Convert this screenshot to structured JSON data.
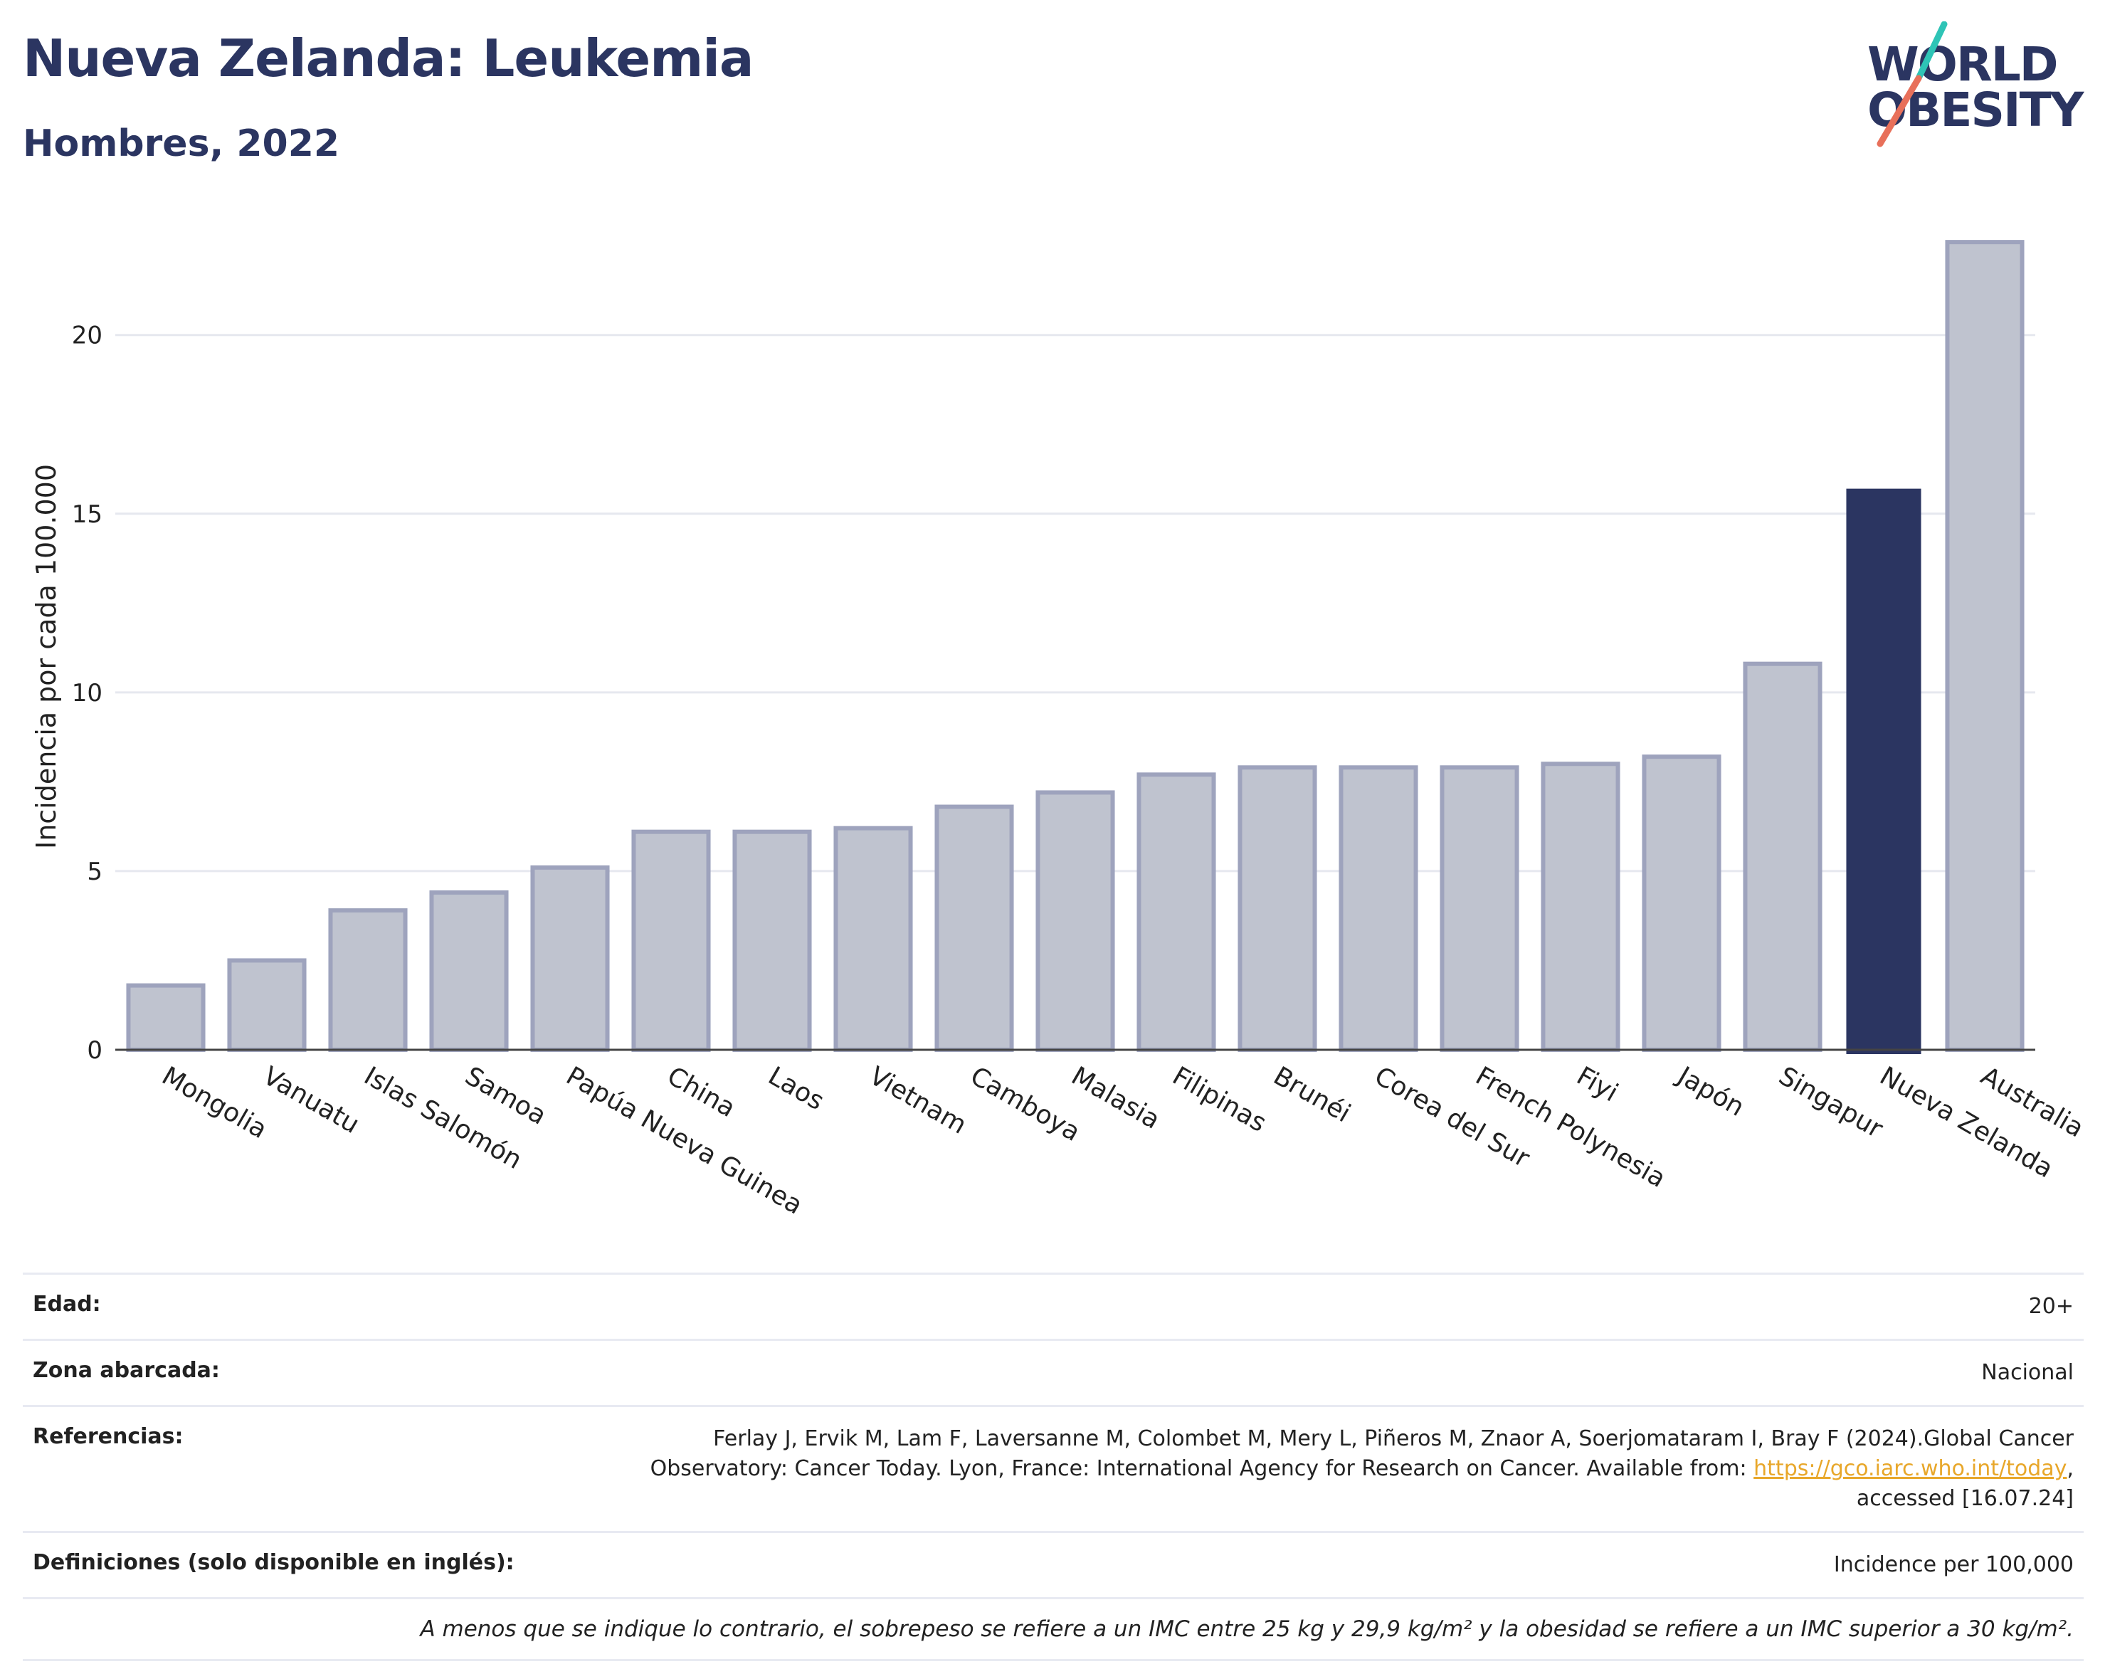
{
  "header": {
    "title": "Nueva Zelanda: Leukemia",
    "subtitle": "Hombres, 2022"
  },
  "logo": {
    "line1": "WORLD",
    "line2": "OBESITY",
    "slash_colors": [
      "#2ec4b6",
      "#e8705a"
    ]
  },
  "chart_data": {
    "type": "bar",
    "title": "Nueva Zelanda: Leukemia",
    "subtitle": "Hombres, 2022",
    "ylabel": "Incidencia por cada 100.000",
    "xlabel": "",
    "ylim": [
      0,
      23.2
    ],
    "yticks": [
      0,
      5,
      10,
      15,
      20
    ],
    "grid": true,
    "highlight": "Nueva Zelanda",
    "colors": {
      "default": "#bfc3cf",
      "default_border": "#9ea3bd",
      "highlight": "#2b3561"
    },
    "categories": [
      "Mongolia",
      "Vanuatu",
      "Islas Salomón",
      "Samoa",
      "Papúa Nueva Guinea",
      "China",
      "Laos",
      "Vietnam",
      "Camboya",
      "Malasia",
      "Filipinas",
      "Brunéi",
      "Corea del Sur",
      "French Polynesia",
      "Fiyi",
      "Japón",
      "Singapur",
      "Nueva Zelanda",
      "Australia"
    ],
    "values": [
      1.8,
      2.5,
      3.9,
      4.4,
      5.1,
      6.1,
      6.1,
      6.2,
      6.8,
      7.2,
      7.7,
      7.9,
      7.9,
      7.9,
      8.0,
      8.2,
      10.8,
      15.7,
      22.6
    ]
  },
  "info": {
    "rows": [
      {
        "key": "Edad:",
        "value": "20+"
      },
      {
        "key": "Zona abarcada:",
        "value": "Nacional"
      },
      {
        "key": "Referencias:",
        "value_pre": "Ferlay J, Ervik M, Lam F, Laversanne M, Colombet M, Mery L, Piñeros M, Znaor A, Soerjomataram I, Bray F (2024).Global Cancer Observatory: Cancer Today. Lyon, France: International Agency for Research on Cancer. Available from: ",
        "link": "https://gco.iarc.who.int/today",
        "value_post": ", accessed [16.07.24]"
      },
      {
        "key": "Definiciones (solo disponible en inglés):",
        "value": "Incidence per 100,000"
      }
    ],
    "note": "A menos que se indique lo contrario, el sobrepeso se refiere a un IMC entre 25 kg y 29,9 kg/m² y la obesidad se refiere a un IMC superior a 30 kg/m²."
  }
}
